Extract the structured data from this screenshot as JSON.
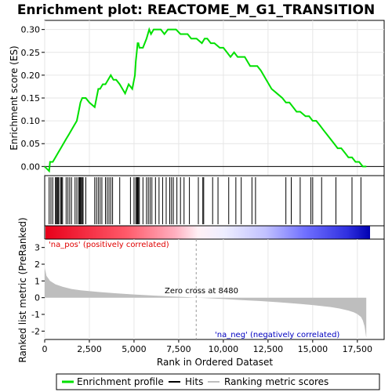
{
  "chart_data": {
    "type": "line",
    "title": "Enrichment plot: REACTOME_M_G1_TRANSITION",
    "xlabel": "Rank in Ordered Dataset",
    "ylabel_top": "Enrichment score (ES)",
    "ylabel_bottom": "Ranked list metric (PreRanked)",
    "xlim": [
      0,
      18000
    ],
    "x_ticks": [
      0,
      2500,
      5000,
      7500,
      10000,
      12500,
      15000,
      17500
    ],
    "x_tick_labels": [
      "0",
      "2,500",
      "5,000",
      "7,500",
      "10,000",
      "12,500",
      "15,000",
      "17,500"
    ],
    "es_ylim": [
      -0.02,
      0.32
    ],
    "es_ticks": [
      0.0,
      0.05,
      0.1,
      0.15,
      0.2,
      0.25,
      0.3
    ],
    "es_tick_labels": [
      "0.00",
      "0.05",
      "0.10",
      "0.15",
      "0.20",
      "0.25",
      "0.30"
    ],
    "metric_ylim": [
      -2.5,
      3.5
    ],
    "metric_ticks": [
      3,
      2,
      1,
      0,
      -1,
      -2
    ],
    "metric_tick_labels": [
      "3",
      "2",
      "1",
      "0",
      "-1",
      "-2"
    ],
    "zero_cross_label": "Zero cross at 8480",
    "zero_cross": 8480,
    "pos_label": "'na_pos' (positively correlated)",
    "neg_label": "'na_neg' (negatively correlated)",
    "legend": [
      "Enrichment profile",
      "Hits",
      "Ranking metric scores"
    ],
    "colors": {
      "enrichment": "#00e000",
      "hits": "#000000",
      "metric_fill": "#bebebe",
      "pos_text": "#e00000",
      "neg_text": "#0000c0",
      "grid": "#e6e6e6"
    },
    "enrichment_profile": {
      "x": [
        0,
        250,
        300,
        450,
        600,
        750,
        900,
        1050,
        1200,
        1350,
        1500,
        1650,
        1800,
        1900,
        2000,
        2100,
        2200,
        2300,
        2500,
        2800,
        2900,
        3000,
        3100,
        3250,
        3400,
        3550,
        3700,
        3850,
        4000,
        4200,
        4500,
        4700,
        4900,
        5050,
        5100,
        5150,
        5200,
        5250,
        5300,
        5500,
        5700,
        5850,
        5950,
        6100,
        6300,
        6500,
        6700,
        6900,
        7050,
        7200,
        7350,
        7600,
        7800,
        8000,
        8200,
        8500,
        8800,
        8950,
        9100,
        9300,
        9500,
        9800,
        10000,
        10200,
        10400,
        10600,
        10800,
        11000,
        11200,
        11500,
        11700,
        11900,
        12100,
        12400,
        12700,
        13000,
        13300,
        13500,
        13700,
        13900,
        14100,
        14300,
        14600,
        14800,
        15000,
        15200,
        15400,
        15600,
        15800,
        16000,
        16200,
        16400,
        16600,
        16800,
        17000,
        17200,
        17400,
        17600,
        17800,
        18000
      ],
      "y": [
        0.0,
        -0.01,
        0.01,
        0.01,
        0.02,
        0.03,
        0.04,
        0.05,
        0.06,
        0.07,
        0.08,
        0.09,
        0.1,
        0.12,
        0.14,
        0.15,
        0.15,
        0.15,
        0.14,
        0.13,
        0.15,
        0.17,
        0.17,
        0.18,
        0.18,
        0.19,
        0.2,
        0.19,
        0.19,
        0.18,
        0.16,
        0.18,
        0.17,
        0.2,
        0.23,
        0.25,
        0.27,
        0.27,
        0.26,
        0.26,
        0.28,
        0.3,
        0.29,
        0.3,
        0.3,
        0.3,
        0.29,
        0.3,
        0.3,
        0.3,
        0.3,
        0.29,
        0.29,
        0.29,
        0.28,
        0.28,
        0.27,
        0.28,
        0.28,
        0.27,
        0.27,
        0.26,
        0.26,
        0.25,
        0.24,
        0.25,
        0.24,
        0.24,
        0.24,
        0.22,
        0.22,
        0.22,
        0.21,
        0.19,
        0.17,
        0.16,
        0.15,
        0.14,
        0.14,
        0.13,
        0.12,
        0.12,
        0.11,
        0.11,
        0.1,
        0.1,
        0.09,
        0.08,
        0.07,
        0.06,
        0.05,
        0.04,
        0.04,
        0.03,
        0.02,
        0.02,
        0.01,
        0.01,
        0.0,
        0.0
      ]
    },
    "hits": [
      250,
      350,
      450,
      600,
      650,
      700,
      750,
      800,
      900,
      950,
      1000,
      1200,
      1300,
      1400,
      1500,
      1700,
      1800,
      1900,
      1950,
      2000,
      2050,
      2100,
      2150,
      2300,
      2800,
      2900,
      3000,
      3100,
      3200,
      3400,
      3500,
      3600,
      3700,
      3800,
      4200,
      4800,
      5000,
      5100,
      5150,
      5200,
      5250,
      5300,
      5500,
      5700,
      5800,
      5900,
      6000,
      6200,
      6400,
      6600,
      6800,
      7000,
      7100,
      7200,
      7400,
      7600,
      7800,
      8100,
      8600,
      8850,
      8900,
      9400,
      9700,
      10300,
      10700,
      11000,
      11600,
      11800,
      13500,
      13800,
      14300,
      14900,
      15000,
      15500,
      16300,
      17200,
      17700
    ],
    "metric_profile": {
      "x": [
        0,
        100,
        300,
        600,
        1000,
        1500,
        2000,
        3000,
        4000,
        5000,
        6000,
        7000,
        8000,
        8480,
        9000,
        10000,
        11000,
        12000,
        13000,
        14000,
        15000,
        16000,
        16500,
        17000,
        17300,
        17500,
        17700,
        17800,
        17900,
        18000
      ],
      "y": [
        1.8,
        1.3,
        1.0,
        0.8,
        0.65,
        0.52,
        0.44,
        0.34,
        0.26,
        0.19,
        0.13,
        0.08,
        0.03,
        0.0,
        -0.03,
        -0.08,
        -0.14,
        -0.2,
        -0.27,
        -0.35,
        -0.44,
        -0.56,
        -0.65,
        -0.77,
        -0.88,
        -0.98,
        -1.15,
        -1.35,
        -1.7,
        -2.4
      ]
    }
  }
}
